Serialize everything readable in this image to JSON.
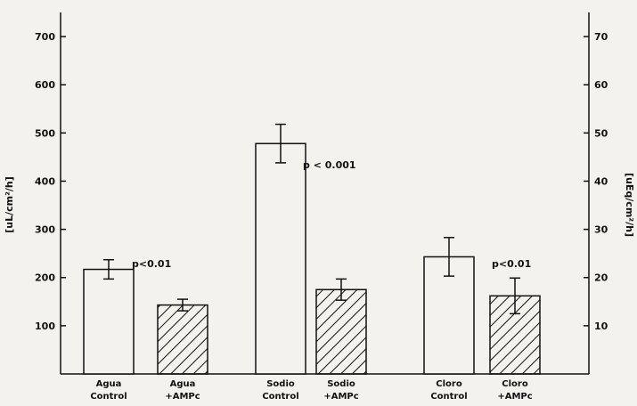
{
  "chart_data": {
    "type": "bar",
    "ylabel_left": "[uL/cm²/h]",
    "ylabel_right": "[uEq/cm²/h]",
    "ylim_left": [
      0,
      750
    ],
    "ylim_right": [
      0,
      75
    ],
    "yticks_left": [
      100,
      200,
      300,
      400,
      500,
      600,
      700
    ],
    "yticks_right": [
      10,
      20,
      30,
      40,
      50,
      60,
      70
    ],
    "grid": false,
    "bars": [
      {
        "line1": "Agua",
        "line2": "Control",
        "value": 217,
        "error": 20,
        "hatched": false
      },
      {
        "line1": "Agua",
        "line2": "+AMPc",
        "value": 143,
        "error": 12,
        "hatched": true
      },
      {
        "line1": "Sodio",
        "line2": "Control",
        "value": 478,
        "error": 40,
        "hatched": false
      },
      {
        "line1": "Sodio",
        "line2": "+AMPc",
        "value": 175,
        "error": 22,
        "hatched": true
      },
      {
        "line1": "Cloro",
        "line2": "Control",
        "value": 243,
        "error": 40,
        "hatched": false
      },
      {
        "line1": "Cloro",
        "line2": "+AMPc",
        "value": 162,
        "error": 37,
        "hatched": true
      }
    ],
    "annotations": [
      {
        "text": "p<0.01",
        "group": "Agua"
      },
      {
        "text": "p < 0.001",
        "group": "Sodio"
      },
      {
        "text": "p<0.01",
        "group": "Cloro"
      }
    ]
  }
}
